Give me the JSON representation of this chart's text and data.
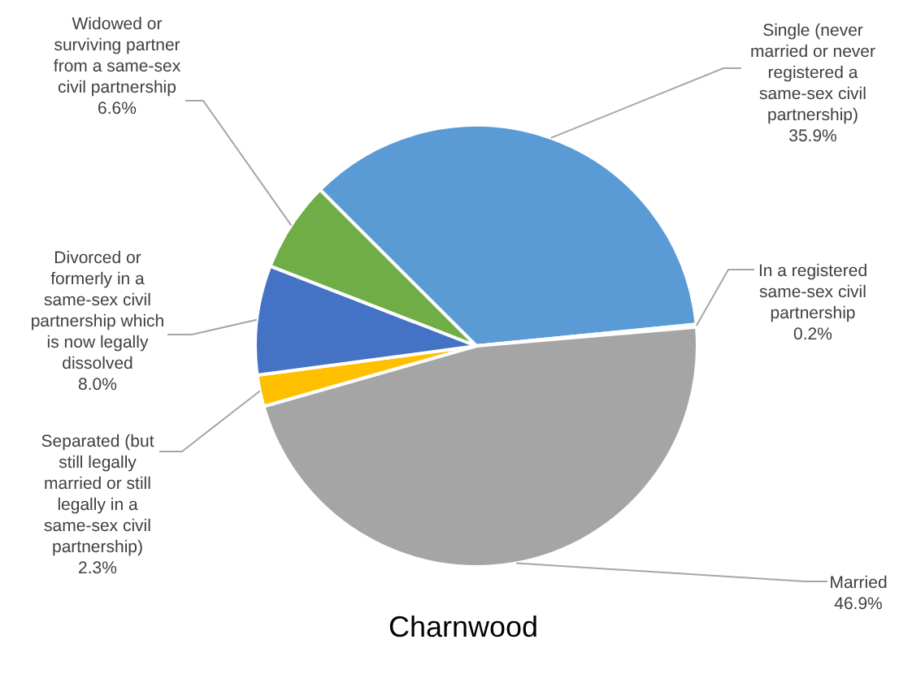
{
  "chart_data": {
    "type": "pie",
    "title": "Charnwood",
    "categories": [
      "Single (never married or never registered a same-sex civil partnership)",
      "In a registered same-sex civil partnership",
      "Married",
      "Separated (but still legally married or still legally in a same-sex civil partnership)",
      "Divorced or formerly in a same-sex civil partnership which is now legally dissolved",
      "Widowed or surviving partner from a same-sex civil partnership"
    ],
    "values": [
      35.9,
      0.2,
      46.9,
      2.3,
      8.0,
      6.6
    ],
    "value_labels": [
      "35.9%",
      "0.2%",
      "46.9%",
      "2.3%",
      "8.0%",
      "6.6%"
    ],
    "colors": [
      "#5b9bd5",
      "#ed7d31",
      "#a5a5a5",
      "#ffc000",
      "#4472c4",
      "#70ad47"
    ],
    "legend": false
  }
}
